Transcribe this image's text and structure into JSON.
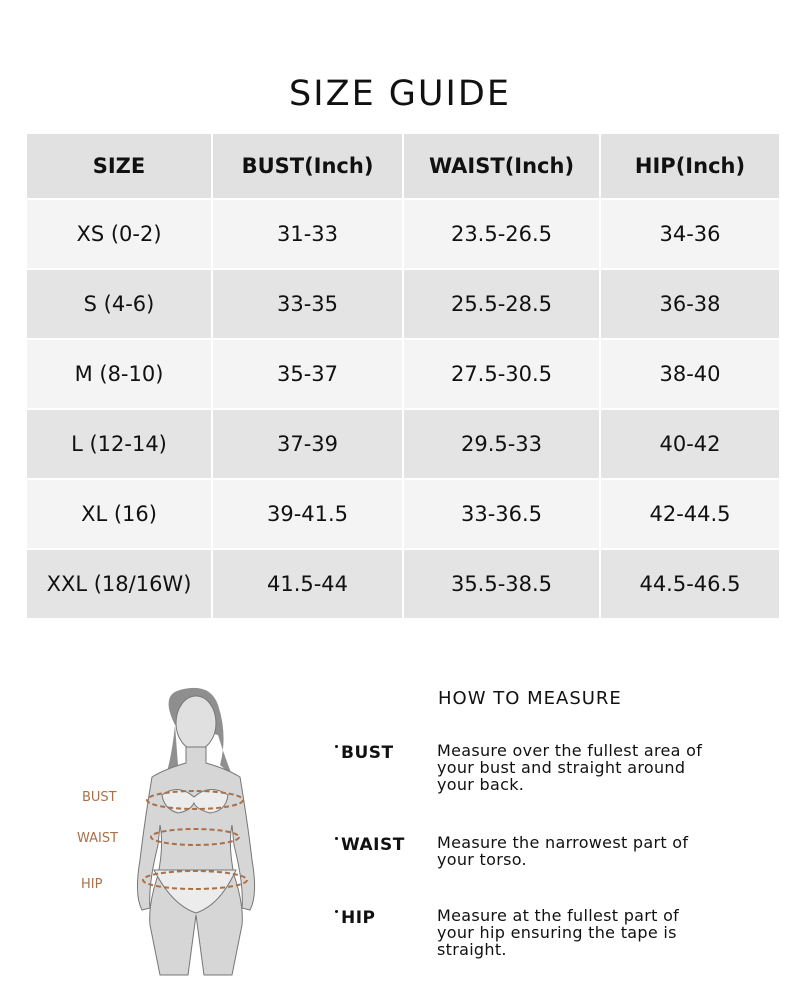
{
  "title": "SIZE GUIDE",
  "table": {
    "header": [
      "SIZE",
      "BUST(Inch)",
      "WAIST(Inch)",
      "HIP(Inch)"
    ],
    "rows": [
      [
        "XS (0-2)",
        "31-33",
        "23.5-26.5",
        "34-36"
      ],
      [
        "S (4-6)",
        "33-35",
        "25.5-28.5",
        "36-38"
      ],
      [
        "M (8-10)",
        "35-37",
        "27.5-30.5",
        "38-40"
      ],
      [
        "L (12-14)",
        "37-39",
        "29.5-33",
        "40-42"
      ],
      [
        "XL (16)",
        "39-41.5",
        "33-36.5",
        "42-44.5"
      ],
      [
        "XXL (18/16W)",
        "41.5-44",
        "35.5-38.5",
        "44.5-46.5"
      ]
    ]
  },
  "figure": {
    "labels": [
      "BUST",
      "WAIST",
      "HIP"
    ]
  },
  "how_to_measure": {
    "heading": "HOW TO MEASURE",
    "items": [
      {
        "label": "BUST",
        "text": "Measure over the fullest area of your bust and straight around your back."
      },
      {
        "label": "WAIST",
        "text": "Measure the narrowest part of your torso."
      },
      {
        "label": "HIP",
        "text": "Measure at the fullest part of your hip ensuring the tape is straight."
      }
    ]
  }
}
